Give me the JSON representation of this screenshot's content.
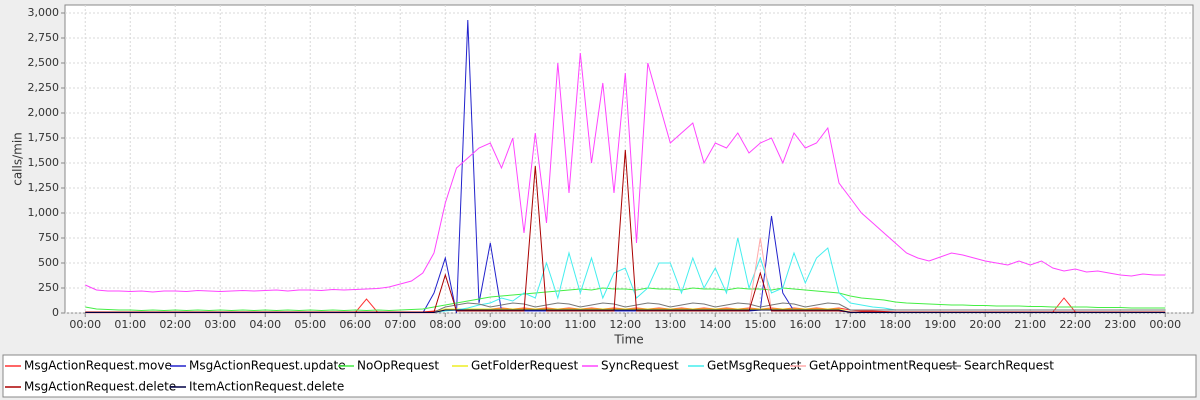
{
  "chart_data": {
    "type": "line",
    "x_label": "Time",
    "y_label": "calls/min",
    "xlim": [
      -27,
      1477
    ],
    "ylim": [
      0,
      3080
    ],
    "grid": true,
    "xticks": [
      {
        "value": 0,
        "label": "00:00"
      },
      {
        "value": 60,
        "label": "01:00"
      },
      {
        "value": 120,
        "label": "02:00"
      },
      {
        "value": 180,
        "label": "03:00"
      },
      {
        "value": 240,
        "label": "04:00"
      },
      {
        "value": 300,
        "label": "05:00"
      },
      {
        "value": 360,
        "label": "06:00"
      },
      {
        "value": 420,
        "label": "07:00"
      },
      {
        "value": 480,
        "label": "08:00"
      },
      {
        "value": 540,
        "label": "09:00"
      },
      {
        "value": 600,
        "label": "10:00"
      },
      {
        "value": 660,
        "label": "11:00"
      },
      {
        "value": 720,
        "label": "12:00"
      },
      {
        "value": 780,
        "label": "13:00"
      },
      {
        "value": 840,
        "label": "14:00"
      },
      {
        "value": 900,
        "label": "15:00"
      },
      {
        "value": 960,
        "label": "16:00"
      },
      {
        "value": 1020,
        "label": "17:00"
      },
      {
        "value": 1080,
        "label": "18:00"
      },
      {
        "value": 1140,
        "label": "19:00"
      },
      {
        "value": 1200,
        "label": "20:00"
      },
      {
        "value": 1260,
        "label": "21:00"
      },
      {
        "value": 1320,
        "label": "22:00"
      },
      {
        "value": 1380,
        "label": "23:00"
      },
      {
        "value": 1440,
        "label": "00:00"
      }
    ],
    "yticks": [
      0,
      250,
      500,
      750,
      {
        "value": 1000,
        "label": "1,000"
      },
      {
        "value": 1250,
        "label": "1,250"
      },
      {
        "value": 1500,
        "label": "1,500"
      },
      {
        "value": 1750,
        "label": "1,750"
      },
      {
        "value": 2000,
        "label": "2,000"
      },
      {
        "value": 2250,
        "label": "2,250"
      },
      {
        "value": 2500,
        "label": "2,500"
      },
      {
        "value": 2750,
        "label": "2,750"
      },
      {
        "value": 3000,
        "label": "3,000"
      }
    ],
    "x": [
      0,
      15,
      30,
      45,
      60,
      75,
      90,
      105,
      120,
      135,
      150,
      165,
      180,
      195,
      210,
      225,
      240,
      255,
      270,
      285,
      300,
      315,
      330,
      345,
      360,
      375,
      390,
      405,
      420,
      435,
      450,
      465,
      480,
      495,
      510,
      525,
      540,
      555,
      570,
      585,
      600,
      615,
      630,
      645,
      660,
      675,
      690,
      705,
      720,
      735,
      750,
      765,
      780,
      795,
      810,
      825,
      840,
      855,
      870,
      885,
      900,
      915,
      930,
      945,
      960,
      975,
      990,
      1005,
      1020,
      1035,
      1050,
      1065,
      1080,
      1095,
      1110,
      1125,
      1140,
      1155,
      1170,
      1185,
      1200,
      1215,
      1230,
      1245,
      1260,
      1275,
      1290,
      1305,
      1320,
      1335,
      1350,
      1365,
      1380,
      1395,
      1410,
      1425,
      1440
    ],
    "series": [
      {
        "name": "MsgActionRequest.move",
        "color": "#ff3333",
        "values": [
          10,
          5,
          5,
          5,
          5,
          5,
          5,
          5,
          5,
          5,
          5,
          5,
          5,
          5,
          5,
          5,
          5,
          5,
          5,
          5,
          5,
          5,
          5,
          5,
          5,
          140,
          5,
          5,
          5,
          10,
          10,
          20,
          30,
          30,
          40,
          40,
          40,
          50,
          40,
          50,
          40,
          50,
          40,
          50,
          40,
          50,
          40,
          50,
          40,
          50,
          40,
          50,
          40,
          50,
          40,
          50,
          40,
          50,
          40,
          50,
          40,
          50,
          40,
          50,
          40,
          50,
          40,
          50,
          30,
          20,
          20,
          15,
          10,
          10,
          10,
          10,
          10,
          10,
          10,
          10,
          10,
          10,
          10,
          10,
          10,
          10,
          10,
          150,
          10,
          10,
          10,
          10,
          10,
          10,
          10,
          10,
          10
        ]
      },
      {
        "name": "MsgActionRequest.update",
        "color": "#2222cc",
        "values": [
          0,
          0,
          0,
          0,
          0,
          0,
          0,
          0,
          0,
          0,
          0,
          0,
          0,
          0,
          0,
          0,
          0,
          0,
          0,
          0,
          0,
          0,
          0,
          0,
          0,
          0,
          0,
          0,
          0,
          0,
          0,
          200,
          550,
          0,
          2930,
          100,
          700,
          20,
          20,
          20,
          20,
          20,
          20,
          20,
          20,
          20,
          20,
          20,
          20,
          20,
          20,
          20,
          20,
          20,
          20,
          20,
          20,
          20,
          20,
          20,
          30,
          970,
          200,
          20,
          20,
          20,
          20,
          20,
          10,
          10,
          10,
          10,
          10,
          10,
          10,
          10,
          10,
          10,
          10,
          10,
          10,
          10,
          10,
          10,
          10,
          10,
          10,
          10,
          10,
          10,
          10,
          10,
          10,
          10,
          10,
          10,
          10
        ]
      },
      {
        "name": "NoOpRequest",
        "color": "#44ee44",
        "values": [
          60,
          40,
          35,
          30,
          30,
          25,
          30,
          25,
          30,
          25,
          30,
          25,
          30,
          25,
          30,
          25,
          30,
          25,
          30,
          25,
          30,
          25,
          30,
          25,
          30,
          25,
          30,
          25,
          30,
          35,
          40,
          60,
          80,
          100,
          120,
          140,
          160,
          170,
          180,
          190,
          200,
          210,
          220,
          230,
          240,
          230,
          250,
          240,
          240,
          230,
          250,
          240,
          240,
          230,
          250,
          240,
          240,
          230,
          250,
          240,
          240,
          230,
          250,
          240,
          230,
          220,
          210,
          200,
          170,
          150,
          140,
          130,
          110,
          100,
          95,
          90,
          85,
          80,
          80,
          75,
          75,
          70,
          70,
          70,
          65,
          65,
          60,
          60,
          60,
          60,
          55,
          55,
          55,
          50,
          50,
          50,
          50
        ]
      },
      {
        "name": "GetFolderRequest",
        "color": "#eeee22",
        "values": [
          0,
          0,
          0,
          0,
          0,
          0,
          0,
          0,
          0,
          0,
          0,
          0,
          0,
          0,
          0,
          0,
          0,
          0,
          0,
          0,
          0,
          0,
          0,
          0,
          0,
          0,
          0,
          0,
          5,
          5,
          10,
          10,
          40,
          40,
          40,
          40,
          40,
          40,
          40,
          40,
          40,
          40,
          40,
          40,
          40,
          40,
          40,
          40,
          40,
          40,
          40,
          40,
          40,
          40,
          40,
          40,
          40,
          40,
          40,
          40,
          40,
          40,
          40,
          40,
          40,
          40,
          40,
          40,
          10,
          10,
          10,
          10,
          10,
          10,
          10,
          10,
          10,
          10,
          10,
          10,
          10,
          10,
          10,
          10,
          10,
          10,
          10,
          10,
          10,
          10,
          10,
          10,
          10,
          10,
          10,
          10,
          10
        ]
      },
      {
        "name": "SyncRequest",
        "color": "#ff44ff",
        "values": [
          280,
          230,
          220,
          220,
          215,
          220,
          210,
          220,
          220,
          215,
          225,
          220,
          215,
          220,
          225,
          220,
          225,
          230,
          220,
          230,
          230,
          225,
          235,
          230,
          235,
          240,
          245,
          260,
          290,
          320,
          400,
          600,
          1100,
          1450,
          1550,
          1650,
          1700,
          1450,
          1750,
          800,
          1800,
          900,
          2500,
          1200,
          2600,
          1500,
          2300,
          1200,
          2400,
          700,
          2500,
          2100,
          1700,
          1800,
          1900,
          1500,
          1700,
          1650,
          1800,
          1600,
          1700,
          1750,
          1500,
          1800,
          1650,
          1700,
          1850,
          1300,
          1150,
          1000,
          900,
          800,
          700,
          600,
          550,
          520,
          560,
          600,
          580,
          550,
          520,
          500,
          480,
          520,
          480,
          520,
          450,
          420,
          440,
          410,
          420,
          400,
          380,
          370,
          390,
          380,
          380
        ]
      },
      {
        "name": "GetMsgRequest",
        "color": "#44eeee",
        "values": [
          0,
          0,
          0,
          0,
          0,
          0,
          0,
          0,
          0,
          0,
          0,
          0,
          0,
          0,
          0,
          0,
          0,
          0,
          0,
          0,
          0,
          0,
          0,
          0,
          0,
          0,
          0,
          0,
          0,
          0,
          0,
          0,
          20,
          30,
          50,
          80,
          100,
          150,
          120,
          200,
          150,
          500,
          150,
          600,
          200,
          550,
          150,
          400,
          450,
          150,
          250,
          500,
          500,
          200,
          550,
          250,
          450,
          200,
          750,
          250,
          550,
          200,
          250,
          600,
          300,
          550,
          650,
          200,
          100,
          80,
          60,
          50,
          30,
          30,
          30,
          30,
          30,
          30,
          30,
          30,
          30,
          30,
          30,
          30,
          30,
          30,
          30,
          30,
          30,
          30,
          30,
          30,
          30,
          30,
          30,
          30,
          30
        ]
      },
      {
        "name": "GetAppointmentRequest",
        "color": "#ffaaaa",
        "values": [
          0,
          0,
          0,
          0,
          0,
          0,
          0,
          0,
          0,
          0,
          0,
          0,
          0,
          0,
          0,
          0,
          0,
          0,
          0,
          0,
          0,
          0,
          0,
          0,
          0,
          0,
          0,
          0,
          0,
          0,
          0,
          0,
          30,
          30,
          30,
          30,
          30,
          30,
          30,
          30,
          30,
          30,
          30,
          30,
          30,
          30,
          30,
          30,
          30,
          30,
          30,
          30,
          30,
          30,
          30,
          30,
          30,
          30,
          30,
          30,
          750,
          30,
          30,
          30,
          30,
          30,
          30,
          30,
          10,
          10,
          10,
          10,
          10,
          10,
          10,
          10,
          10,
          10,
          10,
          10,
          10,
          10,
          10,
          10,
          10,
          10,
          10,
          10,
          10,
          10,
          10,
          10,
          10,
          10,
          10,
          10,
          10
        ]
      },
      {
        "name": "SearchRequest",
        "color": "#777777",
        "values": [
          10,
          10,
          10,
          10,
          10,
          10,
          10,
          10,
          10,
          10,
          10,
          10,
          10,
          10,
          10,
          10,
          10,
          10,
          10,
          10,
          10,
          10,
          10,
          10,
          10,
          10,
          10,
          10,
          10,
          10,
          10,
          10,
          60,
          80,
          100,
          90,
          60,
          80,
          100,
          90,
          60,
          80,
          100,
          90,
          60,
          80,
          100,
          90,
          60,
          80,
          100,
          90,
          60,
          80,
          100,
          90,
          60,
          80,
          100,
          90,
          60,
          80,
          100,
          90,
          60,
          80,
          100,
          90,
          30,
          30,
          30,
          30,
          30,
          30,
          30,
          30,
          30,
          30,
          30,
          30,
          30,
          30,
          30,
          30,
          30,
          30,
          30,
          30,
          30,
          30,
          30,
          30,
          30,
          30,
          30,
          30,
          30
        ]
      },
      {
        "name": "MsgActionRequest.delete",
        "color": "#aa0000",
        "values": [
          10,
          10,
          10,
          10,
          10,
          10,
          10,
          10,
          10,
          10,
          10,
          10,
          10,
          10,
          10,
          10,
          10,
          10,
          10,
          10,
          10,
          10,
          10,
          10,
          10,
          10,
          10,
          10,
          10,
          10,
          10,
          10,
          380,
          20,
          20,
          20,
          20,
          20,
          20,
          20,
          1470,
          20,
          20,
          20,
          20,
          20,
          20,
          20,
          1630,
          20,
          20,
          20,
          20,
          20,
          20,
          20,
          20,
          20,
          20,
          20,
          400,
          20,
          20,
          20,
          20,
          20,
          20,
          20,
          10,
          10,
          10,
          10,
          10,
          10,
          10,
          10,
          10,
          10,
          10,
          10,
          10,
          10,
          10,
          10,
          10,
          10,
          10,
          10,
          10,
          10,
          10,
          10,
          10,
          10,
          10,
          10,
          10
        ]
      },
      {
        "name": "ItemActionRequest.delete",
        "color": "#000044",
        "values": [
          5,
          5,
          5,
          5,
          5,
          5,
          5,
          5,
          5,
          5,
          5,
          5,
          5,
          5,
          5,
          5,
          5,
          5,
          5,
          5,
          5,
          5,
          5,
          5,
          5,
          5,
          5,
          5,
          5,
          5,
          5,
          5,
          30,
          30,
          30,
          30,
          30,
          30,
          30,
          30,
          30,
          30,
          30,
          30,
          30,
          30,
          30,
          30,
          30,
          30,
          30,
          30,
          30,
          30,
          30,
          30,
          30,
          30,
          30,
          30,
          30,
          30,
          30,
          30,
          30,
          30,
          30,
          30,
          5,
          5,
          5,
          5,
          5,
          5,
          5,
          5,
          5,
          5,
          5,
          5,
          5,
          5,
          5,
          5,
          5,
          5,
          5,
          5,
          5,
          5,
          5,
          5,
          5,
          5,
          5,
          5,
          5
        ]
      }
    ]
  }
}
